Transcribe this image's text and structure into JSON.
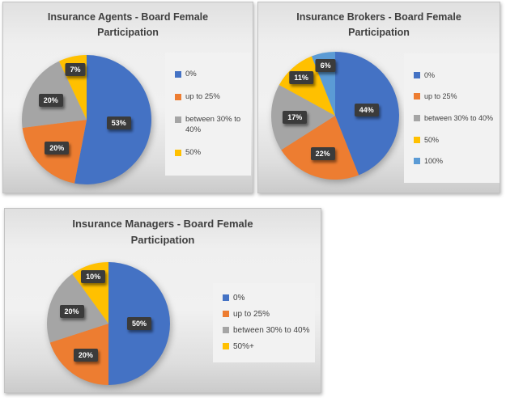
{
  "colors": {
    "series_blue": "#4472C4",
    "series_orange": "#ED7D31",
    "series_gray": "#A5A5A5",
    "series_yellow": "#FFC000",
    "series_light_blue": "#5B9BD5",
    "data_label_bg": "#3B3B3B",
    "data_label_text": "#FFFFFF",
    "title_text": "#3F3F3F",
    "legend_text": "#404040"
  },
  "chart_data": [
    {
      "type": "pie",
      "title": "Insurance Agents - Board Female Participation",
      "categories": [
        "0%",
        "up to 25%",
        "between 30% to 40%",
        "50%"
      ],
      "values": [
        53,
        20,
        20,
        7
      ],
      "data_labels": [
        "53%",
        "20%",
        "20%",
        "7%"
      ],
      "colors": [
        "#4472C4",
        "#ED7D31",
        "#A5A5A5",
        "#FFC000"
      ],
      "legend_position": "right",
      "start_angle": 0,
      "direction": "clockwise"
    },
    {
      "type": "pie",
      "title": "Insurance Brokers - Board Female Participation",
      "categories": [
        "0%",
        "up to 25%",
        "between 30% to 40%",
        "50%",
        "100%"
      ],
      "values": [
        44,
        22,
        17,
        11,
        6
      ],
      "data_labels": [
        "44%",
        "22%",
        "17%",
        "11%",
        "6%"
      ],
      "colors": [
        "#4472C4",
        "#ED7D31",
        "#A5A5A5",
        "#FFC000",
        "#5B9BD5"
      ],
      "legend_position": "right",
      "start_angle": 0,
      "direction": "clockwise"
    },
    {
      "type": "pie",
      "title": "Insurance Managers - Board Female Participation",
      "categories": [
        "0%",
        "up to 25%",
        "between 30% to 40%",
        "50%+"
      ],
      "values": [
        50,
        20,
        20,
        10
      ],
      "data_labels": [
        "50%",
        "20%",
        "20%",
        "10%"
      ],
      "colors": [
        "#4472C4",
        "#ED7D31",
        "#A5A5A5",
        "#FFC000"
      ],
      "legend_position": "right",
      "start_angle": 0,
      "direction": "clockwise"
    }
  ]
}
